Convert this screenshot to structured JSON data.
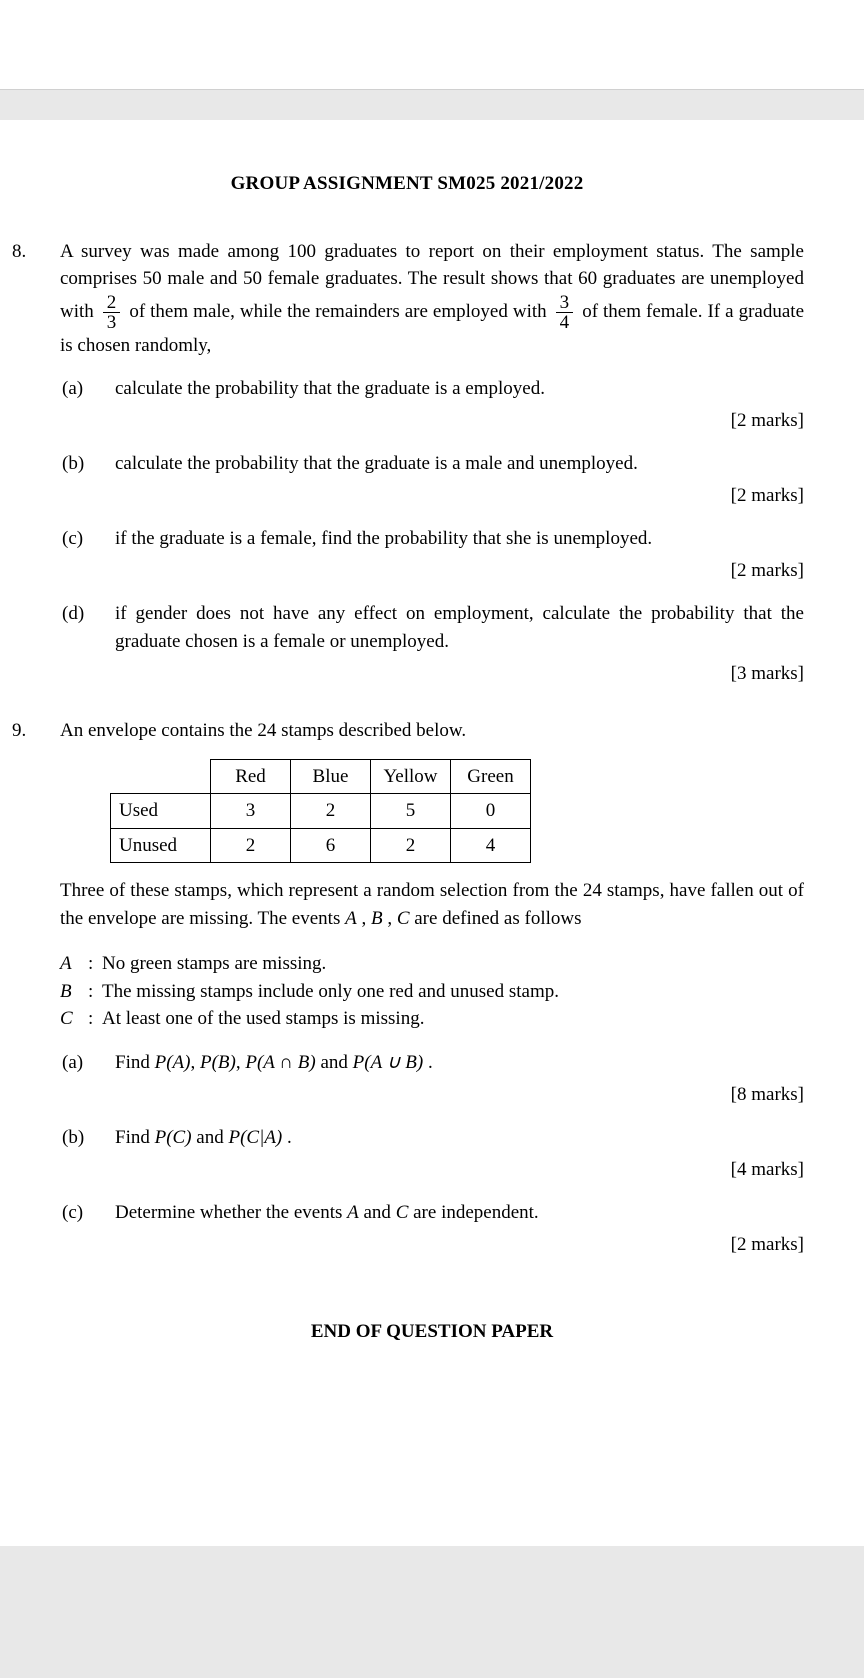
{
  "header": {
    "title": "GROUP ASSIGNMENT SM025 2021/2022"
  },
  "q8": {
    "number": "8.",
    "intro_part1": "A survey was made among 100 graduates to report on their employment status. The sample comprises 50 male and 50 female graduates. The result shows that 60 graduates are unemployed with ",
    "frac1_num": "2",
    "frac1_den": "3",
    "intro_part2": " of them male, while the remainders are employed with ",
    "frac2_num": "3",
    "frac2_den": "4",
    "intro_part3": " of them female. If a graduate is chosen randomly,",
    "parts": {
      "a": {
        "label": "(a)",
        "text": "calculate the probability that the graduate is a employed.",
        "marks": "[2 marks]"
      },
      "b": {
        "label": "(b)",
        "text": "calculate the probability that the graduate is a male and unemployed.",
        "marks": "[2 marks]"
      },
      "c": {
        "label": "(c)",
        "text": "if the graduate is a female, find the probability that she is unemployed.",
        "marks": "[2 marks]"
      },
      "d": {
        "label": "(d)",
        "text": "if gender does not have any effect on employment, calculate the probability that the graduate chosen is a female or unemployed.",
        "marks": "[3 marks]"
      }
    }
  },
  "q9": {
    "number": "9.",
    "intro": "An envelope contains the 24 stamps described below.",
    "table": {
      "columns": [
        "Red",
        "Blue",
        "Yellow",
        "Green"
      ],
      "rows": [
        {
          "head": "Used",
          "cells": [
            "3",
            "2",
            "5",
            "0"
          ]
        },
        {
          "head": "Unused",
          "cells": [
            "2",
            "6",
            "2",
            "4"
          ]
        }
      ]
    },
    "after_table_1": "Three of these stamps, which represent a random selection from the 24 stamps, have fallen out of the envelope are missing. The events ",
    "ev_A": "A",
    "sep1": " , ",
    "ev_B": "B",
    "sep2": " , ",
    "ev_C": "C",
    "after_table_2": " are defined as follows",
    "events": {
      "A": {
        "label": "A",
        "colon": ":",
        "text": "No green stamps are missing."
      },
      "B": {
        "label": "B",
        "colon": ":",
        "text": "The missing stamps include only one red and unused stamp."
      },
      "C": {
        "label": "C",
        "colon": ":",
        "text": "At least one of the used stamps is missing."
      }
    },
    "parts": {
      "a": {
        "label": "(a)",
        "pre": "Find ",
        "expr1": "P(A)",
        "c1": ", ",
        "expr2": "P(B)",
        "c2": ", ",
        "expr3": "P(A ∩ B)",
        "c3": " and ",
        "expr4": "P(A ∪ B)",
        "c4": " .",
        "marks": "[8 marks]"
      },
      "b": {
        "label": "(b)",
        "pre": "Find ",
        "expr1": "P(C)",
        "c1": " and ",
        "expr2": "P(C|A)",
        "c2": " .",
        "marks": "[4 marks]"
      },
      "c": {
        "label": "(c)",
        "pre": "Determine whether the events ",
        "expr1": "A",
        "c1": " and ",
        "expr2": "C",
        "c2": " are independent.",
        "marks": "[2 marks]"
      }
    }
  },
  "footer": {
    "end": "END OF QUESTION PAPER"
  }
}
